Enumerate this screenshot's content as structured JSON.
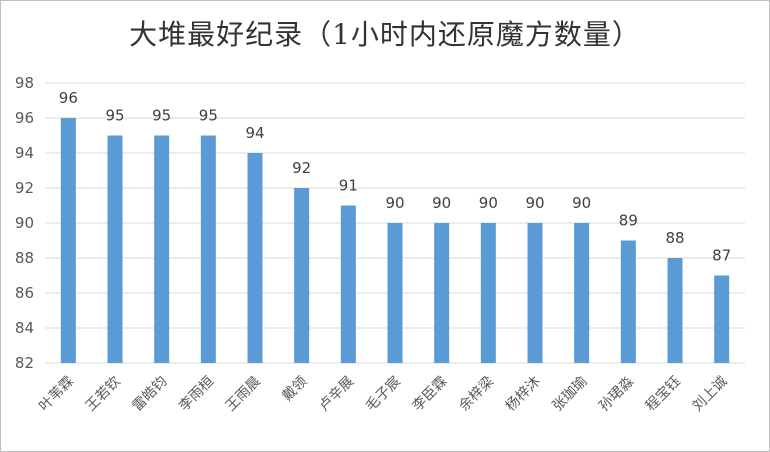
{
  "chart_data": {
    "type": "bar",
    "title": "大堆最好纪录（1小时内还原魔方数量）",
    "xlabel": "",
    "ylabel": "",
    "categories": [
      "叶苇霖",
      "王若钦",
      "雷皓钧",
      "李雨桓",
      "王雨晨",
      "戴领",
      "卢辛展",
      "毛子宸",
      "李臣霖",
      "余梓梁",
      "杨梓沐",
      "张珈瑜",
      "孙珺淼",
      "程宝钰",
      "刘上诚"
    ],
    "values": [
      96,
      95,
      95,
      95,
      94,
      92,
      91,
      90,
      90,
      90,
      90,
      90,
      89,
      88,
      87
    ],
    "ylim": [
      82,
      98
    ],
    "yticks": [
      82,
      84,
      86,
      88,
      90,
      92,
      94,
      96,
      98
    ],
    "grid": true,
    "bar_color": "#5b9bd5",
    "data_labels": true
  }
}
